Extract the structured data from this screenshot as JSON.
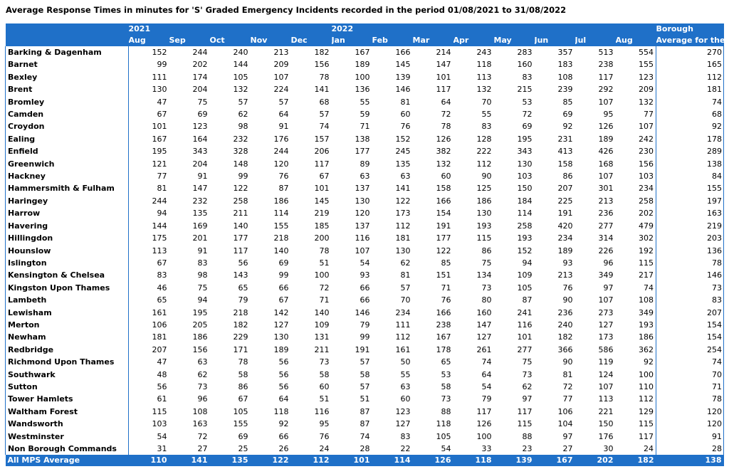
{
  "title": "Average Response Times in minutes for 'S' Graded Emergency Incidents recorded in the period 01/08/2021 to 31/08/2022",
  "header": {
    "year1": "2021",
    "year2": "2022",
    "last_col_line1": "Borough",
    "last_col_line2": "Average for the",
    "months": [
      "Aug",
      "Sep",
      "Oct",
      "Nov",
      "Dec",
      "Jan",
      "Feb",
      "Mar",
      "Apr",
      "May",
      "Jun",
      "Jul",
      "Aug"
    ]
  },
  "rows": [
    {
      "name": "Barking & Dagenham",
      "values": [
        "152",
        "244",
        "240",
        "213",
        "182",
        "167",
        "166",
        "214",
        "243",
        "283",
        "357",
        "513",
        "554"
      ],
      "avg": "270"
    },
    {
      "name": "Barnet",
      "values": [
        "99",
        "202",
        "144",
        "209",
        "156",
        "189",
        "145",
        "147",
        "118",
        "160",
        "183",
        "238",
        "155"
      ],
      "avg": "165"
    },
    {
      "name": "Bexley",
      "values": [
        "111",
        "174",
        "105",
        "107",
        "78",
        "100",
        "139",
        "101",
        "113",
        "83",
        "108",
        "117",
        "123"
      ],
      "avg": "112"
    },
    {
      "name": "Brent",
      "values": [
        "130",
        "204",
        "132",
        "224",
        "141",
        "136",
        "146",
        "117",
        "132",
        "215",
        "239",
        "292",
        "209"
      ],
      "avg": "181"
    },
    {
      "name": "Bromley",
      "values": [
        "47",
        "75",
        "57",
        "57",
        "68",
        "55",
        "81",
        "64",
        "70",
        "53",
        "85",
        "107",
        "132"
      ],
      "avg": "74"
    },
    {
      "name": "Camden",
      "values": [
        "67",
        "69",
        "62",
        "64",
        "57",
        "59",
        "60",
        "72",
        "55",
        "72",
        "69",
        "95",
        "77"
      ],
      "avg": "68"
    },
    {
      "name": "Croydon",
      "values": [
        "101",
        "123",
        "98",
        "91",
        "74",
        "71",
        "76",
        "78",
        "83",
        "69",
        "92",
        "126",
        "107"
      ],
      "avg": "92"
    },
    {
      "name": "Ealing",
      "values": [
        "167",
        "164",
        "232",
        "176",
        "157",
        "138",
        "152",
        "126",
        "128",
        "195",
        "231",
        "189",
        "242"
      ],
      "avg": "178"
    },
    {
      "name": "Enfield",
      "values": [
        "195",
        "343",
        "328",
        "244",
        "206",
        "177",
        "245",
        "382",
        "222",
        "343",
        "413",
        "426",
        "230"
      ],
      "avg": "289"
    },
    {
      "name": "Greenwich",
      "values": [
        "121",
        "204",
        "148",
        "120",
        "117",
        "89",
        "135",
        "132",
        "112",
        "130",
        "158",
        "168",
        "156"
      ],
      "avg": "138"
    },
    {
      "name": "Hackney",
      "values": [
        "77",
        "91",
        "99",
        "76",
        "67",
        "63",
        "63",
        "60",
        "90",
        "103",
        "86",
        "107",
        "103"
      ],
      "avg": "84"
    },
    {
      "name": "Hammersmith & Fulham",
      "values": [
        "81",
        "147",
        "122",
        "87",
        "101",
        "137",
        "141",
        "158",
        "125",
        "150",
        "207",
        "301",
        "234"
      ],
      "avg": "155"
    },
    {
      "name": "Haringey",
      "values": [
        "244",
        "232",
        "258",
        "186",
        "145",
        "130",
        "122",
        "166",
        "186",
        "184",
        "225",
        "213",
        "258"
      ],
      "avg": "197"
    },
    {
      "name": "Harrow",
      "values": [
        "94",
        "135",
        "211",
        "114",
        "219",
        "120",
        "173",
        "154",
        "130",
        "114",
        "191",
        "236",
        "202"
      ],
      "avg": "163"
    },
    {
      "name": "Havering",
      "values": [
        "144",
        "169",
        "140",
        "155",
        "185",
        "137",
        "112",
        "191",
        "193",
        "258",
        "420",
        "277",
        "479"
      ],
      "avg": "219"
    },
    {
      "name": "Hillingdon",
      "values": [
        "175",
        "201",
        "177",
        "218",
        "200",
        "116",
        "181",
        "177",
        "115",
        "193",
        "234",
        "314",
        "302"
      ],
      "avg": "203"
    },
    {
      "name": "Hounslow",
      "values": [
        "113",
        "91",
        "117",
        "140",
        "78",
        "107",
        "130",
        "122",
        "86",
        "152",
        "189",
        "226",
        "192"
      ],
      "avg": "136"
    },
    {
      "name": "Islington",
      "values": [
        "67",
        "83",
        "56",
        "69",
        "51",
        "54",
        "62",
        "85",
        "75",
        "94",
        "93",
        "96",
        "115"
      ],
      "avg": "78"
    },
    {
      "name": "Kensington & Chelsea",
      "values": [
        "83",
        "98",
        "143",
        "99",
        "100",
        "93",
        "81",
        "151",
        "134",
        "109",
        "213",
        "349",
        "217"
      ],
      "avg": "146"
    },
    {
      "name": "Kingston Upon Thames",
      "values": [
        "46",
        "75",
        "65",
        "66",
        "72",
        "66",
        "57",
        "71",
        "73",
        "105",
        "76",
        "97",
        "74"
      ],
      "avg": "73"
    },
    {
      "name": "Lambeth",
      "values": [
        "65",
        "94",
        "79",
        "67",
        "71",
        "66",
        "70",
        "76",
        "80",
        "87",
        "90",
        "107",
        "108"
      ],
      "avg": "83"
    },
    {
      "name": "Lewisham",
      "values": [
        "161",
        "195",
        "218",
        "142",
        "140",
        "146",
        "234",
        "166",
        "160",
        "241",
        "236",
        "273",
        "349"
      ],
      "avg": "207"
    },
    {
      "name": "Merton",
      "values": [
        "106",
        "205",
        "182",
        "127",
        "109",
        "79",
        "111",
        "238",
        "147",
        "116",
        "240",
        "127",
        "193"
      ],
      "avg": "154"
    },
    {
      "name": "Newham",
      "values": [
        "181",
        "186",
        "229",
        "130",
        "131",
        "99",
        "112",
        "167",
        "127",
        "101",
        "182",
        "173",
        "186"
      ],
      "avg": "154"
    },
    {
      "name": "Redbridge",
      "values": [
        "207",
        "156",
        "171",
        "189",
        "211",
        "191",
        "161",
        "178",
        "261",
        "277",
        "366",
        "586",
        "362"
      ],
      "avg": "254"
    },
    {
      "name": "Richmond Upon Thames",
      "values": [
        "47",
        "63",
        "78",
        "56",
        "73",
        "57",
        "50",
        "65",
        "74",
        "75",
        "90",
        "119",
        "92"
      ],
      "avg": "74"
    },
    {
      "name": "Southwark",
      "values": [
        "48",
        "62",
        "58",
        "56",
        "58",
        "58",
        "55",
        "53",
        "64",
        "73",
        "81",
        "124",
        "100"
      ],
      "avg": "70"
    },
    {
      "name": "Sutton",
      "values": [
        "56",
        "73",
        "86",
        "56",
        "60",
        "57",
        "63",
        "58",
        "54",
        "62",
        "72",
        "107",
        "110"
      ],
      "avg": "71"
    },
    {
      "name": "Tower Hamlets",
      "values": [
        "61",
        "96",
        "67",
        "64",
        "51",
        "51",
        "60",
        "73",
        "79",
        "97",
        "77",
        "113",
        "112"
      ],
      "avg": "78"
    },
    {
      "name": "Waltham Forest",
      "values": [
        "115",
        "108",
        "105",
        "118",
        "116",
        "87",
        "123",
        "88",
        "117",
        "117",
        "106",
        "221",
        "129"
      ],
      "avg": "120"
    },
    {
      "name": "Wandsworth",
      "values": [
        "103",
        "163",
        "155",
        "92",
        "95",
        "87",
        "127",
        "118",
        "126",
        "115",
        "104",
        "150",
        "115"
      ],
      "avg": "120"
    },
    {
      "name": "Westminster",
      "values": [
        "54",
        "72",
        "69",
        "66",
        "76",
        "74",
        "83",
        "105",
        "100",
        "88",
        "97",
        "176",
        "117"
      ],
      "avg": "91"
    },
    {
      "name": "Non Borough Commands",
      "values": [
        "31",
        "27",
        "25",
        "26",
        "24",
        "28",
        "22",
        "54",
        "33",
        "23",
        "27",
        "30",
        "24"
      ],
      "avg": "28"
    }
  ],
  "footer": {
    "name": "All MPS Average",
    "values": [
      "110",
      "141",
      "135",
      "122",
      "112",
      "101",
      "114",
      "126",
      "118",
      "139",
      "167",
      "202",
      "182"
    ],
    "avg": "138"
  },
  "colors": {
    "header_bg": "#1f70c8",
    "header_text": "#ffffff"
  }
}
